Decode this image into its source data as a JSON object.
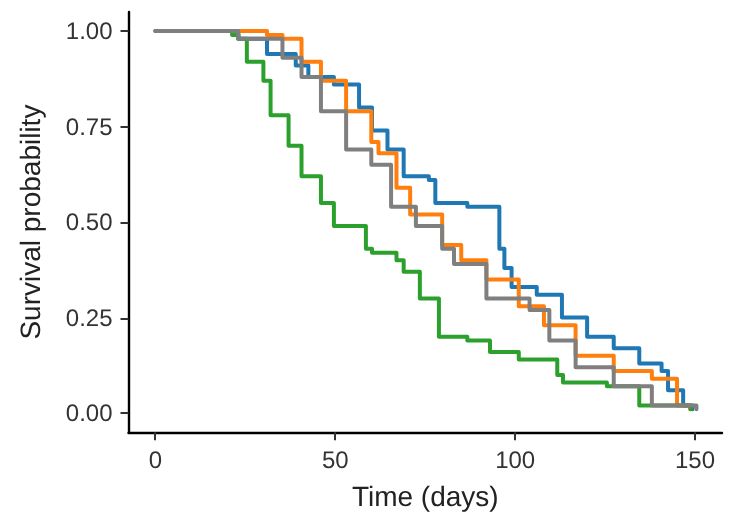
{
  "chart_data": {
    "type": "step",
    "xlabel": "Time (days)",
    "ylabel": "Survival probability",
    "xlim": [
      -7.5,
      157.5
    ],
    "xticks": [
      0,
      50,
      100,
      150
    ],
    "ylim": [
      -0.05,
      1.05
    ],
    "yticks": [
      {
        "value": 0,
        "label": "0.00"
      },
      {
        "value": 0.25,
        "label": "0.25"
      },
      {
        "value": 0.5,
        "label": "0.50"
      },
      {
        "value": 0.75,
        "label": "0.75"
      },
      {
        "value": 1,
        "label": "1.00"
      }
    ],
    "grid": false,
    "marker": "none",
    "line_style": "solid",
    "series": [
      {
        "color": "#1f77b4",
        "x": [
          0,
          23,
          31,
          39,
          42.5,
          49.6,
          56.6,
          60.2,
          64.5,
          69,
          76,
          77.8,
          86.7,
          95.6,
          97,
          99,
          106,
          113,
          120,
          127.4,
          134.5,
          140.7,
          142.5,
          146.7,
          149.3
        ],
        "values": [
          1,
          0.98,
          0.94,
          0.91,
          0.88,
          0.86,
          0.8,
          0.74,
          0.69,
          0.62,
          0.61,
          0.55,
          0.54,
          0.43,
          0.38,
          0.33,
          0.31,
          0.25,
          0.2,
          0.17,
          0.13,
          0.11,
          0.06,
          0.02,
          0.01
        ]
      },
      {
        "color": "#ff7f0e",
        "x": [
          0,
          31,
          35.3,
          40.6,
          46,
          53,
          60,
          62,
          67,
          70.8,
          79.7,
          85,
          92,
          101,
          108,
          116.8,
          127.4,
          138,
          145,
          148.6
        ],
        "values": [
          1,
          0.99,
          0.98,
          0.92,
          0.87,
          0.79,
          0.71,
          0.68,
          0.59,
          0.52,
          0.44,
          0.4,
          0.35,
          0.28,
          0.23,
          0.15,
          0.11,
          0.09,
          0.02,
          0.01
        ]
      },
      {
        "color": "#2ca02c",
        "x": [
          0,
          21.3,
          23.1,
          25.4,
          30,
          32,
          37,
          40.6,
          46,
          49.6,
          58.5,
          60.2,
          67,
          69,
          73.5,
          78.8,
          86.7,
          93,
          101,
          111.7,
          113.3,
          125.5,
          134.5,
          148.8
        ],
        "values": [
          1,
          0.99,
          0.98,
          0.92,
          0.87,
          0.78,
          0.7,
          0.62,
          0.55,
          0.49,
          0.43,
          0.42,
          0.4,
          0.37,
          0.3,
          0.2,
          0.19,
          0.16,
          0.14,
          0.1,
          0.08,
          0.07,
          0.02,
          0.01
        ]
      },
      {
        "color": "#7f7f7f",
        "x": [
          0,
          23,
          35.3,
          40.6,
          46,
          53,
          60,
          65.5,
          72.4,
          79.7,
          83,
          92,
          104,
          109.5,
          116.8,
          127.4,
          138,
          150.4
        ],
        "values": [
          1,
          0.98,
          0.93,
          0.88,
          0.79,
          0.69,
          0.65,
          0.54,
          0.49,
          0.43,
          0.39,
          0.3,
          0.27,
          0.19,
          0.12,
          0.07,
          0.02,
          0.01
        ]
      }
    ]
  }
}
